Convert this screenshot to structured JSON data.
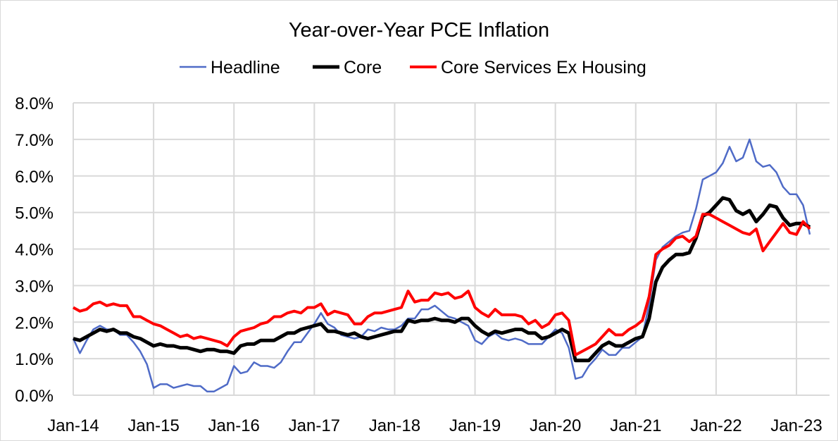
{
  "chart_data": {
    "type": "line",
    "title": "Year-over-Year PCE Inflation",
    "xlabel": "",
    "ylabel": "",
    "ylim": [
      0,
      8
    ],
    "yticks": [
      "0.0%",
      "1.0%",
      "2.0%",
      "3.0%",
      "4.0%",
      "5.0%",
      "6.0%",
      "7.0%",
      "8.0%"
    ],
    "xticks": [
      "Jan-14",
      "Jan-15",
      "Jan-16",
      "Jan-17",
      "Jan-18",
      "Jan-19",
      "Jan-20",
      "Jan-21",
      "Jan-22",
      "Jan-23"
    ],
    "grid": true,
    "legend": "top",
    "x": [
      "Jan-14",
      "Feb-14",
      "Mar-14",
      "Apr-14",
      "May-14",
      "Jun-14",
      "Jul-14",
      "Aug-14",
      "Sep-14",
      "Oct-14",
      "Nov-14",
      "Dec-14",
      "Jan-15",
      "Feb-15",
      "Mar-15",
      "Apr-15",
      "May-15",
      "Jun-15",
      "Jul-15",
      "Aug-15",
      "Sep-15",
      "Oct-15",
      "Nov-15",
      "Dec-15",
      "Jan-16",
      "Feb-16",
      "Mar-16",
      "Apr-16",
      "May-16",
      "Jun-16",
      "Jul-16",
      "Aug-16",
      "Sep-16",
      "Oct-16",
      "Nov-16",
      "Dec-16",
      "Jan-17",
      "Feb-17",
      "Mar-17",
      "Apr-17",
      "May-17",
      "Jun-17",
      "Jul-17",
      "Aug-17",
      "Sep-17",
      "Oct-17",
      "Nov-17",
      "Dec-17",
      "Jan-18",
      "Feb-18",
      "Mar-18",
      "Apr-18",
      "May-18",
      "Jun-18",
      "Jul-18",
      "Aug-18",
      "Sep-18",
      "Oct-18",
      "Nov-18",
      "Dec-18",
      "Jan-19",
      "Feb-19",
      "Mar-19",
      "Apr-19",
      "May-19",
      "Jun-19",
      "Jul-19",
      "Aug-19",
      "Sep-19",
      "Oct-19",
      "Nov-19",
      "Dec-19",
      "Jan-20",
      "Feb-20",
      "Mar-20",
      "Apr-20",
      "May-20",
      "Jun-20",
      "Jul-20",
      "Aug-20",
      "Sep-20",
      "Oct-20",
      "Nov-20",
      "Dec-20",
      "Jan-21",
      "Feb-21",
      "Mar-21",
      "Apr-21",
      "May-21",
      "Jun-21",
      "Jul-21",
      "Aug-21",
      "Sep-21",
      "Oct-21",
      "Nov-21",
      "Dec-21",
      "Jan-22",
      "Feb-22",
      "Mar-22",
      "Apr-22",
      "May-22",
      "Jun-22",
      "Jul-22",
      "Aug-22",
      "Sep-22",
      "Oct-22",
      "Nov-22",
      "Dec-22",
      "Jan-23",
      "Feb-23",
      "Mar-23"
    ],
    "series": [
      {
        "name": "Headline",
        "color": "#4f6bc7",
        "values": [
          1.55,
          1.15,
          1.5,
          1.8,
          1.9,
          1.8,
          1.8,
          1.65,
          1.65,
          1.45,
          1.2,
          0.85,
          0.2,
          0.3,
          0.3,
          0.2,
          0.25,
          0.3,
          0.25,
          0.25,
          0.1,
          0.1,
          0.2,
          0.3,
          0.8,
          0.6,
          0.65,
          0.9,
          0.8,
          0.8,
          0.75,
          0.9,
          1.2,
          1.45,
          1.45,
          1.7,
          1.95,
          2.25,
          1.95,
          1.85,
          1.65,
          1.6,
          1.55,
          1.6,
          1.8,
          1.75,
          1.85,
          1.8,
          1.8,
          1.9,
          2.1,
          2.1,
          2.35,
          2.35,
          2.45,
          2.3,
          2.15,
          2.1,
          2.0,
          1.9,
          1.5,
          1.4,
          1.6,
          1.7,
          1.55,
          1.5,
          1.55,
          1.5,
          1.4,
          1.4,
          1.4,
          1.6,
          1.8,
          1.7,
          1.3,
          0.45,
          0.5,
          0.8,
          1.0,
          1.25,
          1.1,
          1.1,
          1.3,
          1.3,
          1.45,
          1.6,
          2.5,
          3.7,
          4.05,
          4.2,
          4.35,
          4.45,
          4.5,
          5.1,
          5.9,
          6.0,
          6.1,
          6.35,
          6.8,
          6.4,
          6.5,
          7.0,
          6.4,
          6.25,
          6.3,
          6.1,
          5.7,
          5.5,
          5.5,
          5.2,
          4.4
        ]
      },
      {
        "name": "Core",
        "color": "#000000",
        "values": [
          1.55,
          1.5,
          1.6,
          1.7,
          1.8,
          1.75,
          1.8,
          1.7,
          1.7,
          1.6,
          1.55,
          1.45,
          1.35,
          1.4,
          1.35,
          1.35,
          1.3,
          1.3,
          1.25,
          1.2,
          1.25,
          1.25,
          1.2,
          1.2,
          1.15,
          1.35,
          1.4,
          1.4,
          1.5,
          1.5,
          1.5,
          1.6,
          1.7,
          1.7,
          1.8,
          1.85,
          1.9,
          1.95,
          1.75,
          1.75,
          1.7,
          1.65,
          1.7,
          1.6,
          1.55,
          1.6,
          1.65,
          1.7,
          1.75,
          1.75,
          2.05,
          2.0,
          2.05,
          2.05,
          2.1,
          2.05,
          2.05,
          2.0,
          2.1,
          2.1,
          1.9,
          1.75,
          1.65,
          1.75,
          1.7,
          1.75,
          1.8,
          1.8,
          1.7,
          1.7,
          1.55,
          1.6,
          1.7,
          1.8,
          1.7,
          0.95,
          0.95,
          0.95,
          1.15,
          1.35,
          1.45,
          1.35,
          1.35,
          1.45,
          1.55,
          1.6,
          2.1,
          3.1,
          3.5,
          3.7,
          3.85,
          3.85,
          3.9,
          4.3,
          4.9,
          5.0,
          5.2,
          5.4,
          5.35,
          5.05,
          4.95,
          5.05,
          4.75,
          4.95,
          5.2,
          5.15,
          4.85,
          4.65,
          4.7,
          4.7,
          4.6
        ]
      },
      {
        "name": "Core Services Ex Housing",
        "color": "#ff0000",
        "values": [
          2.4,
          2.3,
          2.35,
          2.5,
          2.55,
          2.45,
          2.5,
          2.45,
          2.45,
          2.15,
          2.15,
          2.05,
          1.95,
          1.9,
          1.8,
          1.7,
          1.6,
          1.65,
          1.55,
          1.6,
          1.55,
          1.5,
          1.45,
          1.35,
          1.6,
          1.75,
          1.8,
          1.85,
          1.95,
          2.0,
          2.15,
          2.15,
          2.25,
          2.3,
          2.25,
          2.4,
          2.4,
          2.5,
          2.2,
          2.3,
          2.25,
          2.2,
          1.95,
          1.95,
          2.15,
          2.25,
          2.25,
          2.3,
          2.35,
          2.4,
          2.85,
          2.55,
          2.6,
          2.6,
          2.8,
          2.75,
          2.8,
          2.65,
          2.7,
          2.85,
          2.4,
          2.25,
          2.15,
          2.35,
          2.2,
          2.2,
          2.2,
          2.15,
          1.95,
          2.05,
          1.85,
          1.95,
          2.2,
          2.25,
          2.05,
          1.1,
          1.2,
          1.3,
          1.4,
          1.6,
          1.8,
          1.65,
          1.65,
          1.8,
          1.9,
          2.05,
          2.7,
          3.85,
          4.0,
          4.1,
          4.3,
          4.35,
          4.2,
          4.35,
          4.95,
          4.95,
          4.85,
          4.75,
          4.65,
          4.55,
          4.45,
          4.4,
          4.55,
          3.95,
          4.2,
          4.45,
          4.7,
          4.45,
          4.4,
          4.75,
          4.55
        ]
      }
    ]
  }
}
